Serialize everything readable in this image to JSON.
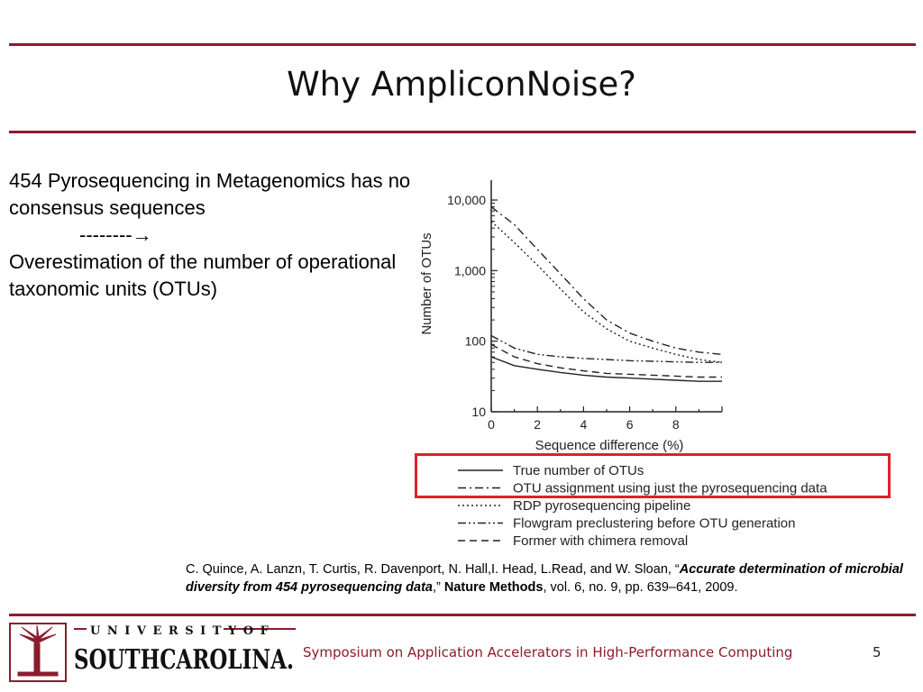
{
  "slide": {
    "title": "Why AmpliconNoise?",
    "body": {
      "line1": "454 Pyrosequencing in Metagenomics has no consensus sequences",
      "arrow_line": "--------",
      "line2": "Overestimation of the number of operational taxonomic units (OTUs)"
    },
    "citation": {
      "authors": "C. Quince, A. Lanzn, T. Curtis, R. Davenport, N. Hall,I. Head, L.Read, and W. Sloan, “",
      "title": "Accurate determination of microbial diversity from 454 pyrosequencing data",
      "sep": ",” ",
      "journal": "Nature Methods",
      "details": ", vol. 6, no. 9, pp. 639–641, 2009."
    },
    "footer": {
      "conference": "Symposium on Application Accelerators in High-Performance Computing",
      "page_number": "5",
      "logo": {
        "top": "U N I V E R S I T Y   O F",
        "bottom": "SOUTHCAROLINA."
      }
    },
    "colors": {
      "rule": "#8b1c2e",
      "highlight": "#e0202a"
    }
  },
  "chart_data": {
    "type": "line",
    "xlabel": "Sequence difference (%)",
    "ylabel": "Number of OTUs",
    "y_scale": "log",
    "xlim": [
      0,
      10
    ],
    "ylim": [
      10,
      10000
    ],
    "x_ticks": [
      "0",
      "2",
      "4",
      "6",
      "8"
    ],
    "y_ticks": [
      "10",
      "100",
      "1,000",
      "10,000"
    ],
    "x": [
      0,
      1,
      2,
      3,
      4,
      5,
      6,
      7,
      8,
      9,
      10
    ],
    "series": [
      {
        "name": "True number of OTUs",
        "style": "solid",
        "values": [
          60,
          45,
          40,
          36,
          33,
          31,
          30,
          29,
          28,
          27,
          27
        ]
      },
      {
        "name": "OTU assignment using just the pyrosequencing data",
        "style": "dashdot",
        "values": [
          8000,
          4500,
          2000,
          900,
          400,
          200,
          130,
          100,
          80,
          70,
          65
        ]
      },
      {
        "name": "RDP pyrosequencing pipeline",
        "style": "dotted",
        "values": [
          5000,
          2500,
          1200,
          550,
          260,
          150,
          100,
          80,
          65,
          55,
          50
        ]
      },
      {
        "name": "Flowgram preclustering before OTU generation",
        "style": "dashdotdot",
        "values": [
          120,
          80,
          65,
          60,
          57,
          55,
          53,
          52,
          51,
          50,
          50
        ]
      },
      {
        "name": "Former with chimera removal",
        "style": "dashed",
        "values": [
          90,
          60,
          48,
          42,
          38,
          35,
          34,
          33,
          32,
          31,
          31
        ]
      }
    ]
  }
}
